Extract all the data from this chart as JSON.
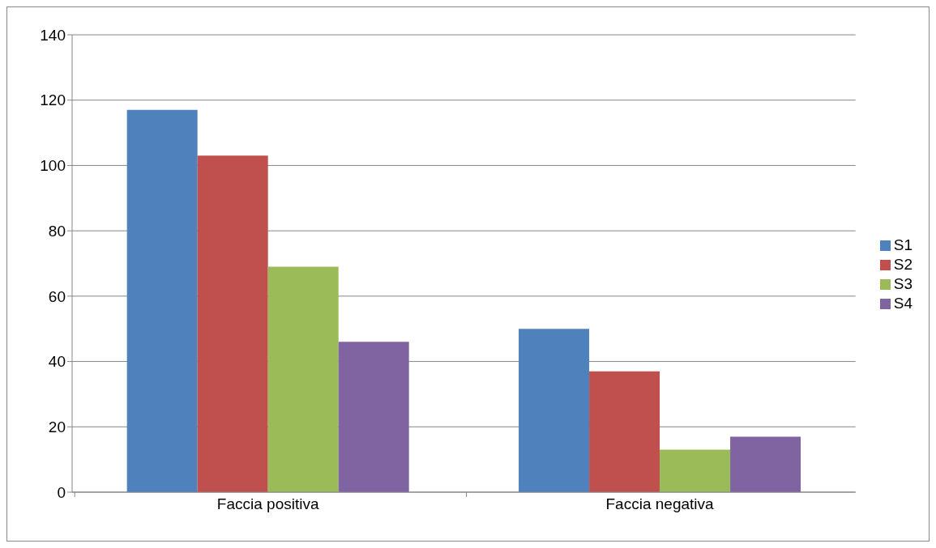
{
  "chart_data": {
    "type": "bar",
    "categories": [
      "Faccia positiva",
      "Faccia negativa"
    ],
    "series": [
      {
        "name": "S1",
        "color": "#4f81bd",
        "values": [
          117,
          50
        ]
      },
      {
        "name": "S2",
        "color": "#c0504d",
        "values": [
          103,
          37
        ]
      },
      {
        "name": "S3",
        "color": "#9bbb59",
        "values": [
          69,
          13
        ]
      },
      {
        "name": "S4",
        "color": "#8064a2",
        "values": [
          46,
          17
        ]
      }
    ],
    "ylim": [
      0,
      140
    ],
    "yticks": [
      0,
      20,
      40,
      60,
      80,
      100,
      120,
      140
    ],
    "grid": "y",
    "legend": "right"
  }
}
